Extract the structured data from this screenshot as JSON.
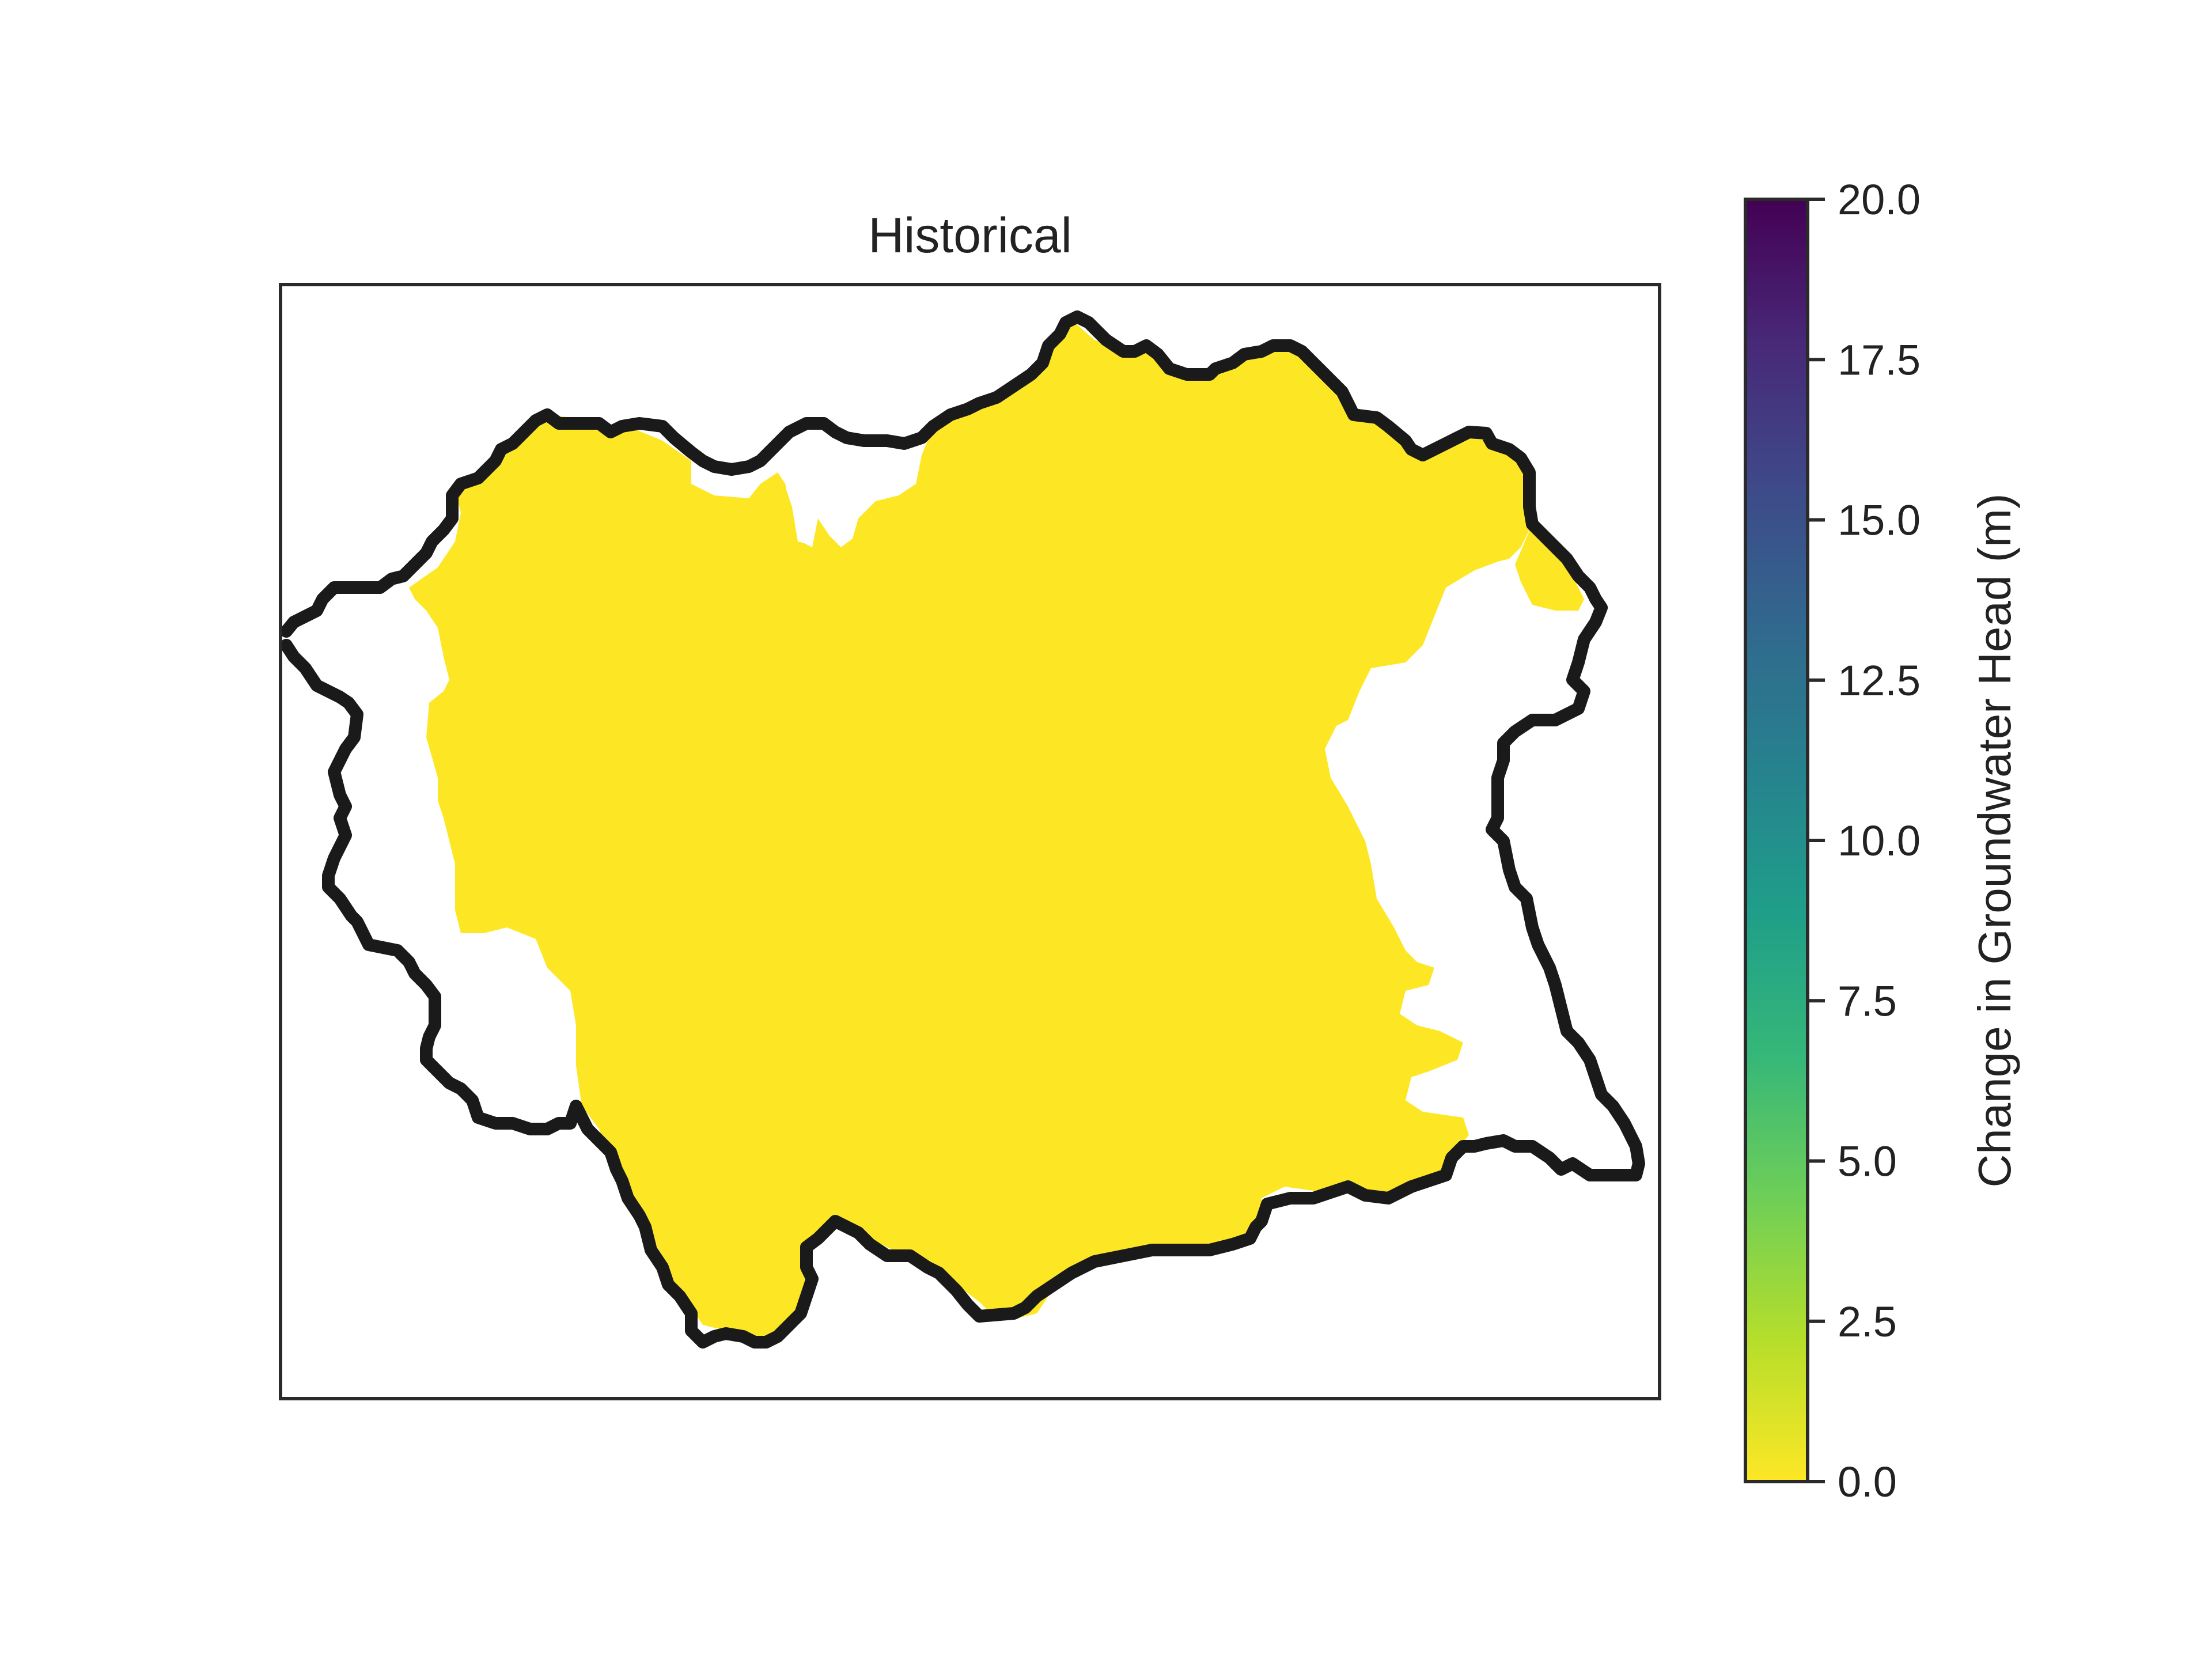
{
  "chart_data": {
    "type": "heatmap",
    "title": "Historical",
    "colorbar": {
      "label": "Change in Groundwater Head (m)",
      "colormap": "viridis (reversed)",
      "range": [
        0.0,
        20.0
      ],
      "ticks": [
        "0.0",
        "2.5",
        "5.0",
        "7.5",
        "10.0",
        "12.5",
        "15.0",
        "17.5",
        "20.0"
      ],
      "color_stops": [
        "#fde725",
        "#b5de2b",
        "#6ece58",
        "#35b779",
        "#1f9e89",
        "#26828e",
        "#31688e",
        "#3e4989",
        "#482878",
        "#440154"
      ]
    },
    "field": {
      "value": 0.0,
      "color": "#fde725",
      "note": "Uniform change near 0 m across most of the basin"
    },
    "boundary_color": "#1a1a1a",
    "axes_ticks_shown": false
  }
}
